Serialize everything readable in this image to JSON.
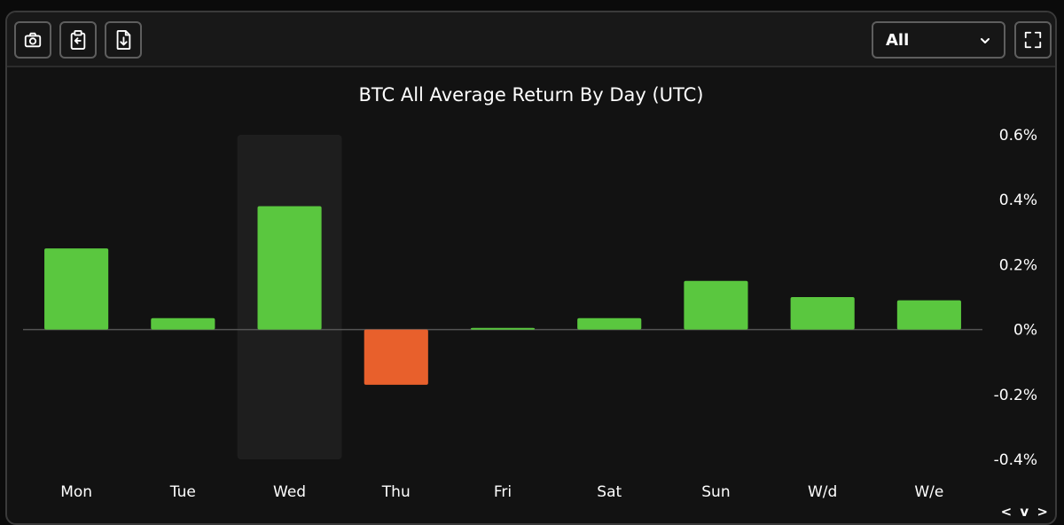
{
  "toolbar": {
    "buttons": [
      {
        "icon": "camera-icon"
      },
      {
        "icon": "clipboard-icon"
      },
      {
        "icon": "file-download-icon"
      }
    ],
    "period_select": {
      "value": "All",
      "chevron_icon": "chevron-down-icon"
    },
    "fullscreen_icon": "fullscreen-icon"
  },
  "chart_data": {
    "type": "bar",
    "title": "BTC All Average Return By Day (UTC)",
    "categories": [
      "Mon",
      "Tue",
      "Wed",
      "Thu",
      "Fri",
      "Sat",
      "Sun",
      "W/d",
      "W/e"
    ],
    "values": [
      0.25,
      0.035,
      0.38,
      -0.17,
      0.005,
      0.035,
      0.15,
      0.1,
      0.09
    ],
    "unit": "%",
    "ylim": [
      -0.4,
      0.6
    ],
    "yticks": [
      "0.6%",
      "0.4%",
      "0.2%",
      "0%",
      "-0.2%",
      "-0.4%"
    ],
    "ytick_values": [
      0.6,
      0.4,
      0.2,
      0,
      -0.2,
      -0.4
    ],
    "highlighted_category": "Wed",
    "y_axis_side": "right",
    "grid": false,
    "colors": {
      "positive": "#5ac73f",
      "negative": "#e8602c",
      "highlight": "#1e1e1e",
      "zero_line": "#555555",
      "text": "#ffffff"
    }
  },
  "pager": {
    "label": "< v >"
  }
}
